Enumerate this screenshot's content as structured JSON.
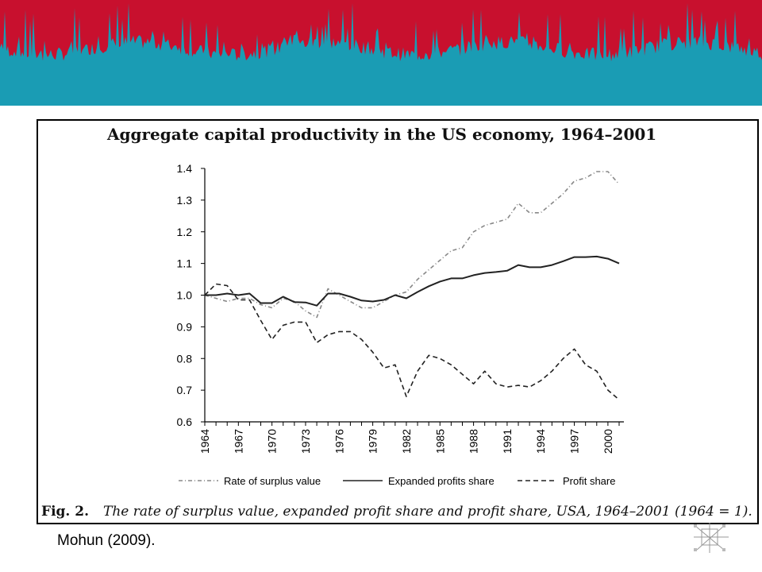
{
  "header": {
    "banner_colors": {
      "top": "#c8102e",
      "bottom": "#1a9cb4"
    }
  },
  "source_text": "Mohun (2009).",
  "caption": {
    "fig_label": "Fig. 2.",
    "text": "The rate of surplus value, expanded profit share and profit share, USA, 1964–2001 (1964 = 1)."
  },
  "logo": {
    "icon": "network-node-icon"
  },
  "chart_data": {
    "type": "line",
    "title": "Aggregate capital productivity in the US economy, 1964–2001",
    "xlabel": "",
    "ylabel": "",
    "xlim": [
      1964,
      2001
    ],
    "ylim": [
      0.6,
      1.4
    ],
    "x_ticks": [
      "1964",
      "1967",
      "1970",
      "1973",
      "1976",
      "1979",
      "1982",
      "1985",
      "1988",
      "1991",
      "1994",
      "1997",
      "2000"
    ],
    "y_ticks": [
      "0.6",
      "0.7",
      "0.8",
      "0.9",
      "1.0",
      "1.1",
      "1.2",
      "1.3",
      "1.4"
    ],
    "grid": false,
    "legend_position": "bottom",
    "x": [
      1964,
      1965,
      1966,
      1967,
      1968,
      1969,
      1970,
      1971,
      1972,
      1973,
      1974,
      1975,
      1976,
      1977,
      1978,
      1979,
      1980,
      1981,
      1982,
      1983,
      1984,
      1985,
      1986,
      1987,
      1988,
      1989,
      1990,
      1991,
      1992,
      1993,
      1994,
      1995,
      1996,
      1997,
      1998,
      1999,
      2000,
      2001
    ],
    "series": [
      {
        "name": "Rate of surplus value",
        "style": "dash-dot",
        "color": "#888888",
        "values": [
          1.0,
          0.99,
          0.98,
          0.99,
          0.99,
          0.97,
          0.96,
          0.99,
          0.98,
          0.95,
          0.93,
          1.02,
          1.0,
          0.98,
          0.96,
          0.96,
          0.98,
          1.0,
          1.01,
          1.05,
          1.08,
          1.11,
          1.14,
          1.15,
          1.2,
          1.22,
          1.23,
          1.24,
          1.29,
          1.26,
          1.26,
          1.29,
          1.32,
          1.36,
          1.37,
          1.39,
          1.39,
          1.35
        ]
      },
      {
        "name": "Expanded profits share",
        "style": "solid",
        "color": "#222222",
        "values": [
          1.0,
          1.0,
          1.005,
          1.0,
          1.005,
          0.975,
          0.975,
          0.995,
          0.978,
          0.977,
          0.967,
          1.005,
          1.005,
          0.995,
          0.983,
          0.98,
          0.985,
          1.0,
          0.99,
          1.01,
          1.028,
          1.043,
          1.053,
          1.053,
          1.063,
          1.07,
          1.073,
          1.077,
          1.095,
          1.088,
          1.088,
          1.095,
          1.107,
          1.12,
          1.12,
          1.122,
          1.115,
          1.1
        ]
      },
      {
        "name": "Profit share",
        "style": "dashed",
        "color": "#222222",
        "values": [
          1.0,
          1.035,
          1.03,
          0.985,
          0.985,
          0.92,
          0.86,
          0.905,
          0.915,
          0.915,
          0.85,
          0.875,
          0.885,
          0.885,
          0.86,
          0.82,
          0.77,
          0.78,
          0.68,
          0.76,
          0.81,
          0.8,
          0.78,
          0.75,
          0.72,
          0.76,
          0.72,
          0.71,
          0.715,
          0.71,
          0.73,
          0.76,
          0.8,
          0.83,
          0.78,
          0.76,
          0.7,
          0.67
        ]
      }
    ]
  }
}
